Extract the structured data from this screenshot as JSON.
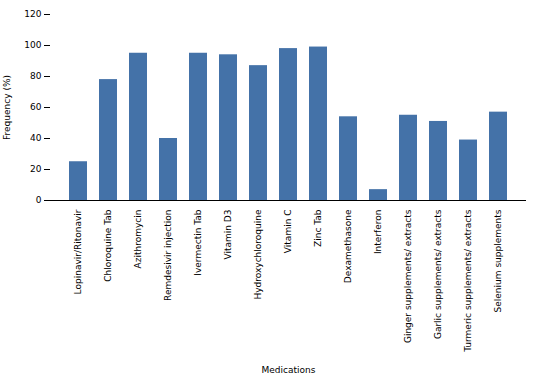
{
  "chart_data": {
    "type": "bar",
    "categories": [
      "Lopinavir/Ritonavir",
      "Chloroquine Tab",
      "Azithromycin",
      "Remdesivir injection",
      "Ivermectin Tab",
      "Vitamin D3",
      "Hydroxychloroquine",
      "Vitamin C",
      "Zinc Tab",
      "Dexamethasone",
      "Interferon",
      "Ginger supplements/ extracts",
      "Garlic supplements/ extracts",
      "Turmeric supplements/ extracts",
      "Selenium supplements"
    ],
    "values": [
      25,
      78,
      95,
      40,
      95,
      94,
      87,
      98,
      99,
      54,
      7,
      55,
      51,
      39,
      57
    ],
    "color": "#4472a8",
    "xlabel": "Medications",
    "ylabel": "Frequency (%)",
    "ylim": [
      0,
      120
    ],
    "yticks": [
      0,
      20,
      40,
      60,
      80,
      100,
      120
    ],
    "grid": false
  }
}
